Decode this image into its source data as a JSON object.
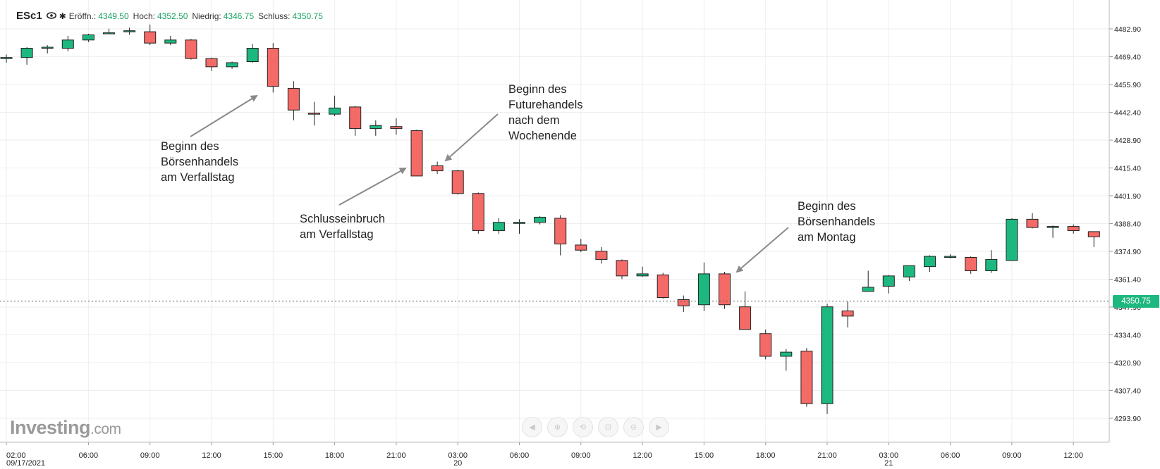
{
  "header": {
    "symbol": "ESc1",
    "open_label": "Eröffn.:",
    "open_value": "4349.50",
    "high_label": "Hoch:",
    "high_value": "4352.50",
    "low_label": "Niedrig:",
    "low_value": "4346.75",
    "close_label": "Schluss:",
    "close_value": "4350.75"
  },
  "logo": {
    "main": "Investing",
    "domain": ".com"
  },
  "current_price": {
    "label": "4350.75",
    "value": 4350.75
  },
  "colors": {
    "up": "#1db87f",
    "down": "#f36a67",
    "grid": "#eeeeee",
    "text": "#222222"
  },
  "nav_icons": [
    "chevron-left-icon",
    "zoom-in-icon",
    "zoom-reset-icon",
    "zoom-fit-icon",
    "zoom-out-icon",
    "chevron-right-icon"
  ],
  "annotations": [
    {
      "text": "Beginn des\nBörsenhandels\nam Verfallstag"
    },
    {
      "text": "Schlusseinbruch\nam Verfallstag"
    },
    {
      "text": "Beginn des\nFuturehandels\nnach dem\nWochenende"
    },
    {
      "text": "Beginn des\nBörsenhandels\nam Montag"
    }
  ],
  "chart_data": {
    "type": "candlestick",
    "interval": "hourly",
    "y_ticks": [
      4482.9,
      4469.4,
      4455.9,
      4442.4,
      4428.9,
      4415.4,
      4401.9,
      4388.4,
      4374.9,
      4361.4,
      4347.9,
      4334.4,
      4320.9,
      4307.4,
      4293.9
    ],
    "ylim": [
      4282,
      4493
    ],
    "x_ticks": [
      {
        "label": "02:00",
        "sub": "09/17/2021",
        "index": 0
      },
      {
        "label": "06:00",
        "sub": "",
        "index": 4
      },
      {
        "label": "09:00",
        "sub": "",
        "index": 7
      },
      {
        "label": "12:00",
        "sub": "",
        "index": 10
      },
      {
        "label": "15:00",
        "sub": "",
        "index": 13
      },
      {
        "label": "18:00",
        "sub": "",
        "index": 16
      },
      {
        "label": "21:00",
        "sub": "",
        "index": 19
      },
      {
        "label": "03:00",
        "sub": "20",
        "index": 22
      },
      {
        "label": "06:00",
        "sub": "",
        "index": 25
      },
      {
        "label": "09:00",
        "sub": "",
        "index": 28
      },
      {
        "label": "12:00",
        "sub": "",
        "index": 31
      },
      {
        "label": "15:00",
        "sub": "",
        "index": 34
      },
      {
        "label": "18:00",
        "sub": "",
        "index": 37
      },
      {
        "label": "21:00",
        "sub": "",
        "index": 40
      },
      {
        "label": "03:00",
        "sub": "21",
        "index": 43
      },
      {
        "label": "06:00",
        "sub": "",
        "index": 46
      },
      {
        "label": "09:00",
        "sub": "",
        "index": 49
      },
      {
        "label": "12:00",
        "sub": "",
        "index": 52
      }
    ],
    "candles": [
      {
        "o": 4469.0,
        "h": 4470.5,
        "l": 4466.5,
        "c": 4469.0
      },
      {
        "o": 4469.0,
        "h": 4474.0,
        "l": 4465.5,
        "c": 4473.5
      },
      {
        "o": 4473.5,
        "h": 4475.0,
        "l": 4471.0,
        "c": 4474.0
      },
      {
        "o": 4473.5,
        "h": 4479.5,
        "l": 4472.0,
        "c": 4477.5
      },
      {
        "o": 4477.5,
        "h": 4480.5,
        "l": 4476.5,
        "c": 4480.0
      },
      {
        "o": 4481.0,
        "h": 4483.0,
        "l": 4480.5,
        "c": 4481.0
      },
      {
        "o": 4481.5,
        "h": 4483.5,
        "l": 4480.0,
        "c": 4482.0
      },
      {
        "o": 4481.5,
        "h": 4485.0,
        "l": 4475.0,
        "c": 4476.0
      },
      {
        "o": 4476.0,
        "h": 4479.5,
        "l": 4475.0,
        "c": 4477.5
      },
      {
        "o": 4477.5,
        "h": 4478.0,
        "l": 4468.0,
        "c": 4468.5
      },
      {
        "o": 4468.5,
        "h": 4469.0,
        "l": 4462.5,
        "c": 4464.5
      },
      {
        "o": 4464.5,
        "h": 4467.0,
        "l": 4463.5,
        "c": 4466.5
      },
      {
        "o": 4467.0,
        "h": 4475.5,
        "l": 4466.5,
        "c": 4473.5
      },
      {
        "o": 4473.5,
        "h": 4476.0,
        "l": 4452.0,
        "c": 4455.0
      },
      {
        "o": 4454.0,
        "h": 4457.5,
        "l": 4438.5,
        "c": 4443.5
      },
      {
        "o": 4442.0,
        "h": 4447.5,
        "l": 4436.0,
        "c": 4441.5
      },
      {
        "o": 4441.5,
        "h": 4450.5,
        "l": 4440.5,
        "c": 4444.5
      },
      {
        "o": 4445.0,
        "h": 4445.5,
        "l": 4431.0,
        "c": 4434.5
      },
      {
        "o": 4434.5,
        "h": 4438.5,
        "l": 4431.0,
        "c": 4436.0
      },
      {
        "o": 4435.5,
        "h": 4439.5,
        "l": 4431.5,
        "c": 4434.5
      },
      {
        "o": 4433.5,
        "h": 4434.0,
        "l": 4411.5,
        "c": 4411.5
      },
      {
        "o": 4416.5,
        "h": 4418.5,
        "l": 4412.5,
        "c": 4414.0
      },
      {
        "o": 4414.0,
        "h": 4414.5,
        "l": 4402.5,
        "c": 4403.0
      },
      {
        "o": 4403.0,
        "h": 4403.5,
        "l": 4383.5,
        "c": 4385.0
      },
      {
        "o": 4385.0,
        "h": 4391.0,
        "l": 4383.5,
        "c": 4389.0
      },
      {
        "o": 4389.0,
        "h": 4390.5,
        "l": 4383.5,
        "c": 4389.0
      },
      {
        "o": 4389.0,
        "h": 4392.0,
        "l": 4388.0,
        "c": 4391.5
      },
      {
        "o": 4391.0,
        "h": 4392.5,
        "l": 4373.0,
        "c": 4378.5
      },
      {
        "o": 4378.0,
        "h": 4381.0,
        "l": 4374.5,
        "c": 4375.5
      },
      {
        "o": 4375.0,
        "h": 4377.0,
        "l": 4369.0,
        "c": 4371.0
      },
      {
        "o": 4370.5,
        "h": 4371.0,
        "l": 4361.5,
        "c": 4363.0
      },
      {
        "o": 4363.0,
        "h": 4367.5,
        "l": 4362.5,
        "c": 4364.0
      },
      {
        "o": 4363.5,
        "h": 4364.5,
        "l": 4352.0,
        "c": 4352.5
      },
      {
        "o": 4351.5,
        "h": 4353.5,
        "l": 4345.5,
        "c": 4348.5
      },
      {
        "o": 4349.0,
        "h": 4369.5,
        "l": 4346.0,
        "c": 4364.0
      },
      {
        "o": 4364.0,
        "h": 4365.0,
        "l": 4347.0,
        "c": 4349.0
      },
      {
        "o": 4348.0,
        "h": 4355.5,
        "l": 4337.0,
        "c": 4337.0
      },
      {
        "o": 4335.0,
        "h": 4337.0,
        "l": 4322.5,
        "c": 4324.0
      },
      {
        "o": 4324.0,
        "h": 4327.5,
        "l": 4317.0,
        "c": 4326.0
      },
      {
        "o": 4326.5,
        "h": 4328.0,
        "l": 4299.5,
        "c": 4301.0
      },
      {
        "o": 4301.0,
        "h": 4349.5,
        "l": 4296.0,
        "c": 4348.0
      },
      {
        "o": 4346.0,
        "h": 4350.5,
        "l": 4338.0,
        "c": 4343.5
      },
      {
        "o": 4355.5,
        "h": 4365.5,
        "l": 4355.5,
        "c": 4357.5
      },
      {
        "o": 4358.0,
        "h": 4363.5,
        "l": 4354.5,
        "c": 4363.0
      },
      {
        "o": 4362.5,
        "h": 4368.0,
        "l": 4360.5,
        "c": 4368.0
      },
      {
        "o": 4367.5,
        "h": 4373.0,
        "l": 4365.0,
        "c": 4372.5
      },
      {
        "o": 4372.5,
        "h": 4373.5,
        "l": 4371.5,
        "c": 4372.5
      },
      {
        "o": 4372.0,
        "h": 4372.5,
        "l": 4364.0,
        "c": 4365.5
      },
      {
        "o": 4365.5,
        "h": 4375.5,
        "l": 4364.5,
        "c": 4371.0
      },
      {
        "o": 4370.5,
        "h": 4391.0,
        "l": 4370.5,
        "c": 4390.5
      },
      {
        "o": 4390.5,
        "h": 4393.5,
        "l": 4386.0,
        "c": 4386.5
      },
      {
        "o": 4386.5,
        "h": 4387.5,
        "l": 4381.5,
        "c": 4387.0
      },
      {
        "o": 4387.0,
        "h": 4388.0,
        "l": 4383.5,
        "c": 4385.0
      },
      {
        "o": 4384.5,
        "h": 4384.5,
        "l": 4377.0,
        "c": 4382.0
      }
    ]
  }
}
